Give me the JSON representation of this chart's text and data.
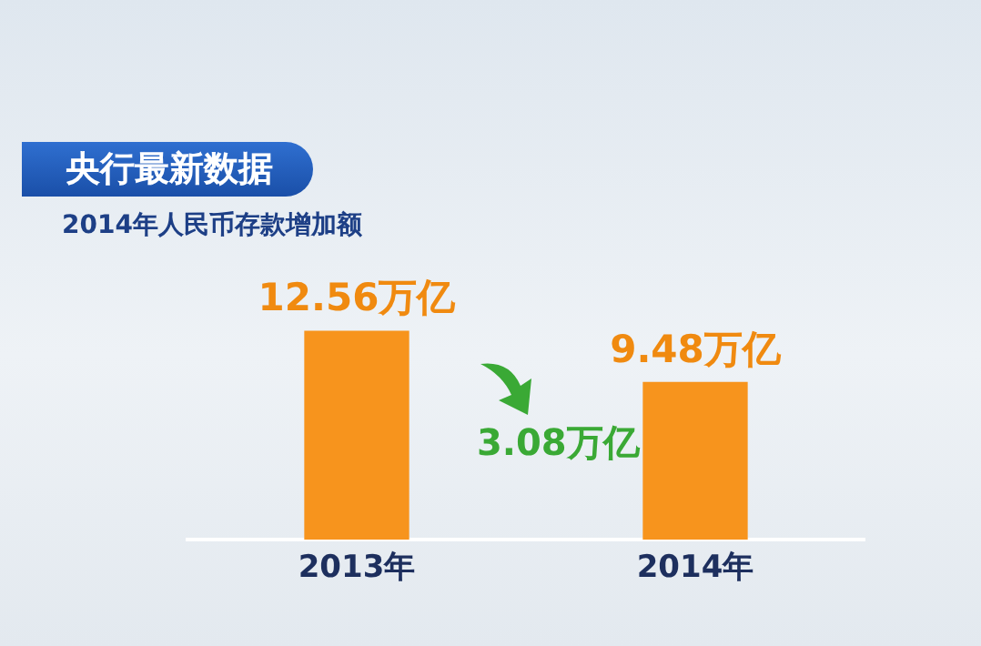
{
  "chart_data": {
    "type": "bar",
    "title": "央行最新数据",
    "subtitle": "2014年人民币存款增加额",
    "categories": [
      "2013年",
      "2014年"
    ],
    "values": [
      12.56,
      9.48
    ],
    "value_labels": [
      "12.56万亿",
      "9.48万亿"
    ],
    "color": "#f7941d",
    "annotations": [
      "3.08万亿"
    ],
    "legend": false,
    "grid": false
  }
}
